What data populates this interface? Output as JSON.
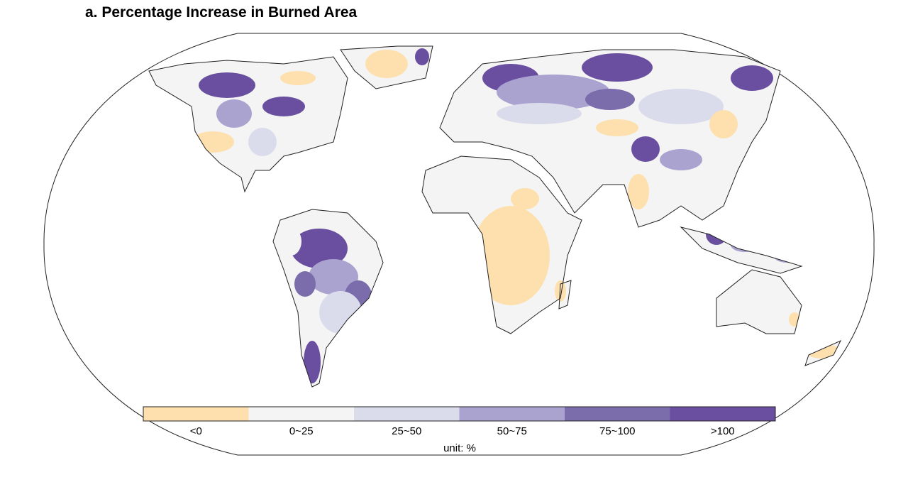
{
  "title": "a. Percentage Increase in Burned Area",
  "legend": {
    "unit": "unit: %",
    "bins": [
      {
        "label": "<0",
        "color": "#fde0ae"
      },
      {
        "label": "0~25",
        "color": "#f4f4f4"
      },
      {
        "label": "25~50",
        "color": "#dadcec"
      },
      {
        "label": "50~75",
        "color": "#aaa3d0"
      },
      {
        "label": "75~100",
        "color": "#7b6cab"
      },
      {
        "label": ">100",
        "color": "#6a4fa0"
      }
    ]
  }
}
